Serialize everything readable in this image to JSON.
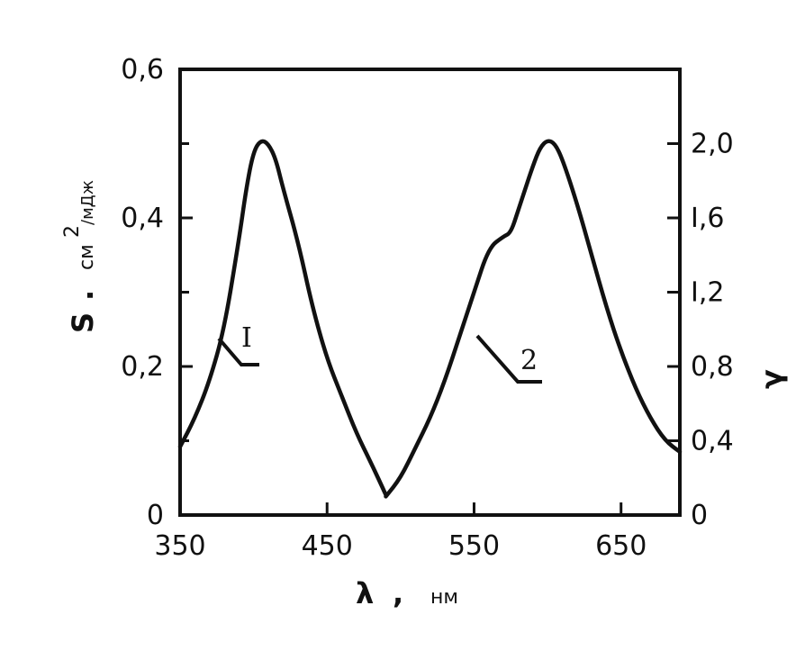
{
  "chart_data": {
    "type": "line",
    "xlabel": {
      "symbol": "λ",
      "sep": ",",
      "unit": "нм"
    },
    "ylabel_left": {
      "symbol": "S",
      "sep": ".",
      "unit_base": "см",
      "unit_exp": "2",
      "unit_den": "/мДж"
    },
    "ylabel_right": "γ",
    "xlim": [
      350,
      690
    ],
    "ylim_left": [
      0,
      0.6
    ],
    "ylim_right": [
      0,
      2.4
    ],
    "x_ticks": [
      {
        "value": 350,
        "label": "350"
      },
      {
        "value": 450,
        "label": "450"
      },
      {
        "value": 550,
        "label": "550"
      },
      {
        "value": 650,
        "label": "650"
      }
    ],
    "y_left_ticks": [
      {
        "value": 0,
        "label": "0"
      },
      {
        "value": 0.2,
        "label": "0,2"
      },
      {
        "value": 0.4,
        "label": "0,4"
      },
      {
        "value": 0.6,
        "label": "0,6"
      }
    ],
    "y_right_ticks": [
      {
        "value": 0,
        "label": "0"
      },
      {
        "value": 0.4,
        "label": "0,4"
      },
      {
        "value": 0.8,
        "label": "0,8"
      },
      {
        "value": 1.2,
        "label": "I,2"
      },
      {
        "value": 1.6,
        "label": "I,6"
      },
      {
        "value": 2.0,
        "label": "2,0"
      }
    ],
    "grid": false,
    "series": [
      {
        "name": "I",
        "axis": "left",
        "points": [
          [
            350,
            0.092
          ],
          [
            360,
            0.13
          ],
          [
            370,
            0.18
          ],
          [
            380,
            0.25
          ],
          [
            390,
            0.37
          ],
          [
            395,
            0.44
          ],
          [
            400,
            0.49
          ],
          [
            405,
            0.505
          ],
          [
            410,
            0.5
          ],
          [
            415,
            0.48
          ],
          [
            420,
            0.44
          ],
          [
            430,
            0.37
          ],
          [
            440,
            0.28
          ],
          [
            450,
            0.21
          ],
          [
            460,
            0.16
          ],
          [
            470,
            0.11
          ],
          [
            480,
            0.07
          ],
          [
            490,
            0.027
          ]
        ]
      },
      {
        "name": "2",
        "axis": "left",
        "points": [
          [
            490,
            0.025
          ],
          [
            500,
            0.05
          ],
          [
            510,
            0.09
          ],
          [
            520,
            0.13
          ],
          [
            530,
            0.18
          ],
          [
            540,
            0.24
          ],
          [
            550,
            0.3
          ],
          [
            560,
            0.36
          ],
          [
            570,
            0.375
          ],
          [
            575,
            0.38
          ],
          [
            580,
            0.41
          ],
          [
            585,
            0.44
          ],
          [
            590,
            0.47
          ],
          [
            595,
            0.495
          ],
          [
            600,
            0.505
          ],
          [
            605,
            0.5
          ],
          [
            610,
            0.48
          ],
          [
            620,
            0.42
          ],
          [
            630,
            0.35
          ],
          [
            640,
            0.28
          ],
          [
            650,
            0.22
          ],
          [
            660,
            0.17
          ],
          [
            670,
            0.13
          ],
          [
            680,
            0.1
          ],
          [
            690,
            0.085
          ]
        ]
      }
    ]
  }
}
